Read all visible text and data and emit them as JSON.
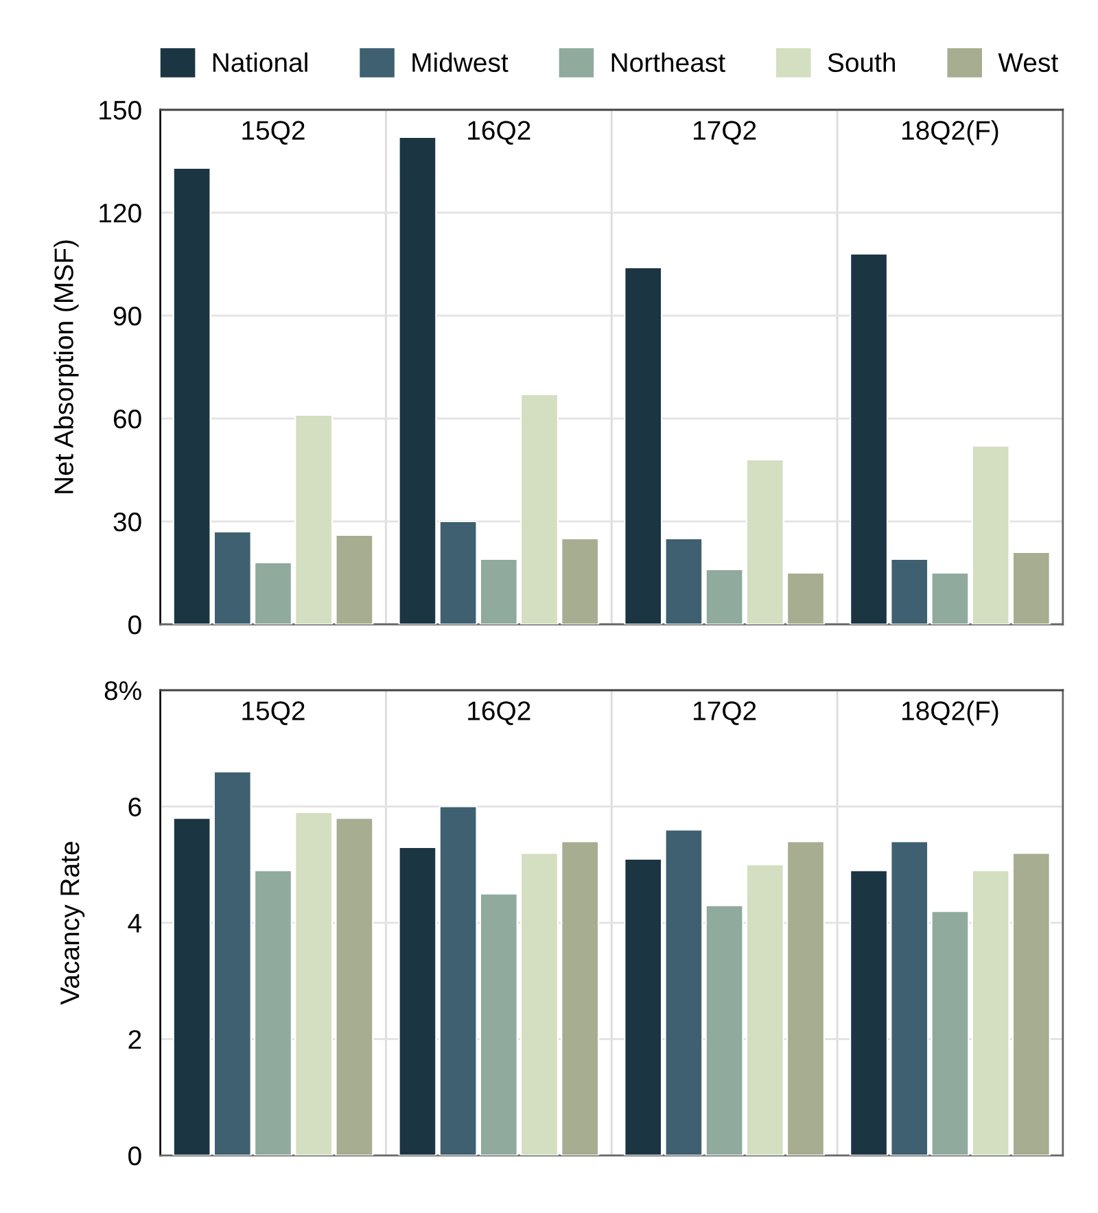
{
  "chart_data": [
    {
      "type": "bar",
      "ylabel": "Net Absorption (MSF)",
      "categories": [
        "15Q2",
        "16Q2",
        "17Q2",
        "18Q2(F)"
      ],
      "series": [
        {
          "name": "National",
          "color": "#1b3642",
          "values": [
            133,
            142,
            104,
            108
          ]
        },
        {
          "name": "Midwest",
          "color": "#3e6070",
          "values": [
            27,
            30,
            25,
            19
          ]
        },
        {
          "name": "Northeast",
          "color": "#90aa9d",
          "values": [
            18,
            19,
            16,
            15
          ]
        },
        {
          "name": "South",
          "color": "#d4dec1",
          "values": [
            61,
            67,
            48,
            52
          ]
        },
        {
          "name": "West",
          "color": "#a7ad90",
          "values": [
            26,
            25,
            15,
            21
          ]
        }
      ],
      "ylim": [
        0,
        150
      ],
      "yticks": [
        0,
        30,
        60,
        90,
        120,
        150
      ],
      "grid": true,
      "legend": "top"
    },
    {
      "type": "bar",
      "ylabel": "Vacancy Rate",
      "categories": [
        "15Q2",
        "16Q2",
        "17Q2",
        "18Q2(F)"
      ],
      "series": [
        {
          "color": "#1b3642",
          "values": [
            5.8,
            5.3,
            5.1,
            4.9
          ]
        },
        {
          "color": "#3e6070",
          "values": [
            6.6,
            6.0,
            5.6,
            5.4
          ]
        },
        {
          "color": "#90aa9d",
          "values": [
            4.9,
            4.5,
            4.3,
            4.2
          ]
        },
        {
          "color": "#d4dec1",
          "values": [
            5.9,
            5.2,
            5.0,
            4.9
          ]
        },
        {
          "color": "#a7ad90",
          "values": [
            5.8,
            5.4,
            5.4,
            5.2
          ]
        }
      ],
      "ylim": [
        0,
        8
      ],
      "yticks": [
        0,
        2,
        4,
        6,
        {
          "value": 8,
          "label": "8%"
        }
      ],
      "grid": true
    }
  ]
}
